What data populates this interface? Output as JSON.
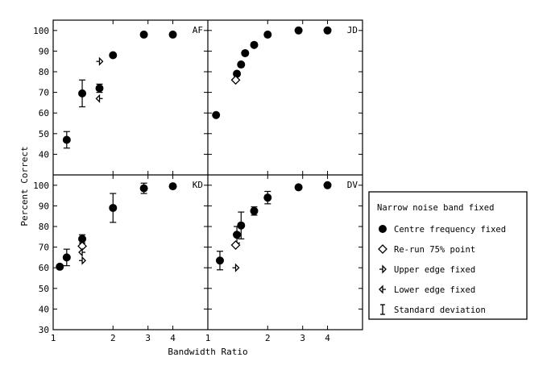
{
  "chart_data": {
    "type": "scatter",
    "xlabel": "Bandwidth Ratio",
    "ylabel": "Percent Correct",
    "x_scale": "log",
    "xlim": [
      1,
      6
    ],
    "ylim": [
      30,
      105
    ],
    "x_ticks": [
      1,
      2,
      3,
      4
    ],
    "y_ticks_top": [
      40,
      50,
      60,
      70,
      80,
      90,
      100
    ],
    "y_ticks_bottom": [
      30,
      40,
      50,
      60,
      70,
      80,
      90,
      100
    ],
    "legend": {
      "title": "Narrow noise band fixed",
      "entries": [
        {
          "marker": "circle",
          "label": "Centre frequency fixed"
        },
        {
          "marker": "diamond",
          "label": "Re-run 75% point"
        },
        {
          "marker": "right-triangle",
          "label": "Upper edge fixed"
        },
        {
          "marker": "left-triangle",
          "label": "Lower edge fixed"
        },
        {
          "marker": "errorbar",
          "label": "Standard deviation"
        }
      ]
    },
    "panels": [
      {
        "label": "AF",
        "series": [
          {
            "marker": "circle",
            "points": [
              {
                "x": 1.17,
                "y": 47,
                "err": 4
              },
              {
                "x": 1.4,
                "y": 69.5,
                "err": 6.5
              },
              {
                "x": 1.71,
                "y": 72,
                "err": 2
              },
              {
                "x": 2.0,
                "y": 88
              },
              {
                "x": 2.86,
                "y": 98
              },
              {
                "x": 4.0,
                "y": 98
              }
            ]
          },
          {
            "marker": "right-triangle",
            "points": [
              {
                "x": 1.71,
                "y": 85
              }
            ]
          },
          {
            "marker": "left-triangle",
            "points": [
              {
                "x": 1.71,
                "y": 67
              }
            ]
          }
        ]
      },
      {
        "label": "JD",
        "series": [
          {
            "marker": "circle",
            "points": [
              {
                "x": 1.1,
                "y": 59
              },
              {
                "x": 1.4,
                "y": 79
              },
              {
                "x": 1.47,
                "y": 83.5
              },
              {
                "x": 1.54,
                "y": 89
              },
              {
                "x": 1.71,
                "y": 93
              },
              {
                "x": 2.0,
                "y": 98
              },
              {
                "x": 2.86,
                "y": 100
              },
              {
                "x": 4.0,
                "y": 100
              }
            ]
          },
          {
            "marker": "diamond",
            "points": [
              {
                "x": 1.38,
                "y": 76
              }
            ]
          }
        ]
      },
      {
        "label": "KD",
        "series": [
          {
            "marker": "circle",
            "points": [
              {
                "x": 1.08,
                "y": 60.5
              },
              {
                "x": 1.17,
                "y": 65,
                "err": 4
              },
              {
                "x": 1.4,
                "y": 74,
                "err": 2
              },
              {
                "x": 2.0,
                "y": 89,
                "err": 7
              },
              {
                "x": 2.86,
                "y": 98.5,
                "err": 2.5
              },
              {
                "x": 4.0,
                "y": 99.5
              }
            ]
          },
          {
            "marker": "diamond",
            "points": [
              {
                "x": 1.4,
                "y": 70.5
              }
            ]
          },
          {
            "marker": "right-triangle",
            "points": [
              {
                "x": 1.4,
                "y": 63.5
              }
            ]
          },
          {
            "marker": "left-triangle",
            "points": [
              {
                "x": 1.4,
                "y": 67.5
              }
            ]
          }
        ]
      },
      {
        "label": "DV",
        "series": [
          {
            "marker": "circle",
            "points": [
              {
                "x": 1.15,
                "y": 63.5,
                "err": 4.5
              },
              {
                "x": 1.4,
                "y": 76,
                "err": 4
              },
              {
                "x": 1.47,
                "y": 80.5,
                "err": 6.5
              },
              {
                "x": 1.71,
                "y": 87.5,
                "err": 2
              },
              {
                "x": 2.0,
                "y": 94,
                "err": 3
              },
              {
                "x": 2.86,
                "y": 99
              },
              {
                "x": 4.0,
                "y": 100
              }
            ]
          },
          {
            "marker": "diamond",
            "points": [
              {
                "x": 1.38,
                "y": 71
              }
            ]
          },
          {
            "marker": "right-triangle",
            "points": [
              {
                "x": 1.38,
                "y": 60
              }
            ]
          }
        ]
      }
    ]
  }
}
